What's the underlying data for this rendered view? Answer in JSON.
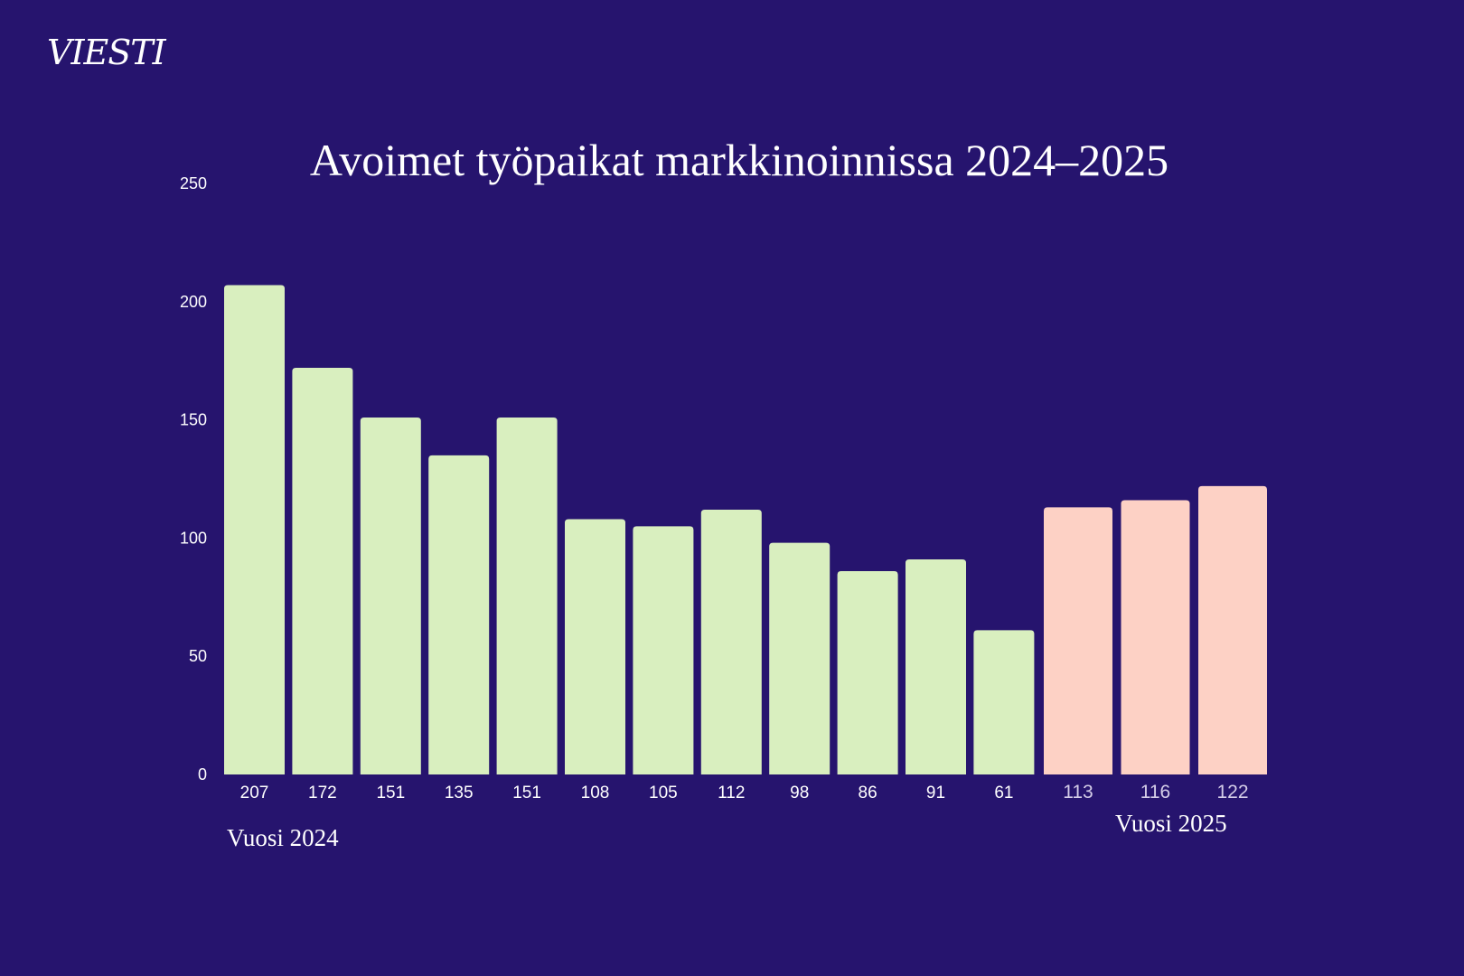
{
  "logo": "VIESTI",
  "chart_data": {
    "type": "bar",
    "title": "Avoimet työpaikat markkinoinnissa 2024–2025",
    "xlabel": "",
    "ylabel": "",
    "ylim": [
      0,
      250
    ],
    "yticks": [
      0,
      50,
      100,
      150,
      200,
      250
    ],
    "grid": false,
    "series": [
      {
        "name": "Vuosi 2024",
        "color": "#d9efbf",
        "values": [
          207,
          172,
          151,
          135,
          151,
          108,
          105,
          112,
          98,
          86,
          91,
          61
        ]
      },
      {
        "name": "Vuosi 2025",
        "color": "#fdd1c5",
        "values": [
          113,
          116,
          122
        ]
      }
    ]
  },
  "groups": {
    "y2024": "Vuosi 2024",
    "y2025": "Vuosi 2025"
  }
}
